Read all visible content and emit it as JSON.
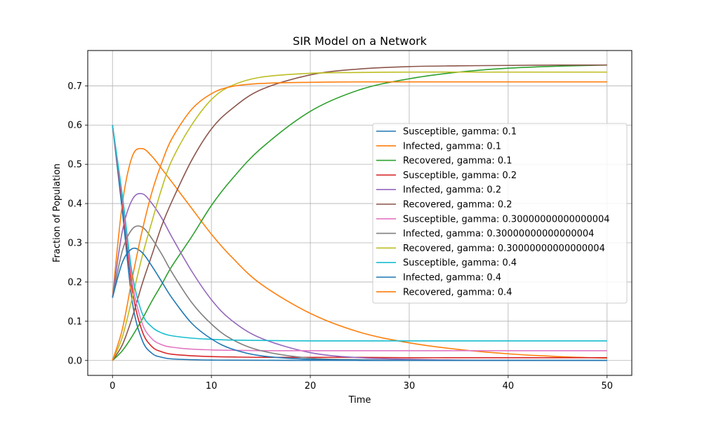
{
  "chart_data": {
    "type": "line",
    "title": "SIR Model on a Network",
    "xlabel": "Time",
    "ylabel": "Fraction of Population",
    "xlim": [
      -2.5,
      52.5
    ],
    "ylim": [
      -0.038,
      0.79
    ],
    "xticks": [
      0,
      10,
      20,
      30,
      40,
      50
    ],
    "yticks": [
      0.0,
      0.1,
      0.2,
      0.3,
      0.4,
      0.5,
      0.6,
      0.7
    ],
    "grid": true,
    "legend_position": "right",
    "x": [
      0,
      1,
      2,
      3,
      4,
      5,
      6,
      8,
      10,
      12,
      15,
      20,
      25,
      30,
      35,
      40,
      45,
      50
    ],
    "series": [
      {
        "name": "Susceptible, gamma: 0.1",
        "color": "#1f77b4",
        "values": [
          0.6,
          0.38,
          0.15,
          0.052,
          0.018,
          0.008,
          0.004,
          0.002,
          0.001,
          0.0008,
          0.0005,
          0.0003,
          0.0002,
          0.0001,
          0.0001,
          0.0001,
          0.0001,
          0.0001
        ]
      },
      {
        "name": "Infected, gamma: 0.1",
        "color": "#ff7f0e",
        "values": [
          0.16,
          0.4,
          0.52,
          0.54,
          0.52,
          0.488,
          0.455,
          0.388,
          0.322,
          0.265,
          0.195,
          0.12,
          0.072,
          0.045,
          0.028,
          0.017,
          0.01,
          0.006
        ]
      },
      {
        "name": "Recovered, gamma: 0.1",
        "color": "#2ca02c",
        "values": [
          0.0,
          0.025,
          0.062,
          0.105,
          0.152,
          0.195,
          0.24,
          0.315,
          0.395,
          0.46,
          0.54,
          0.635,
          0.69,
          0.718,
          0.735,
          0.745,
          0.75,
          0.753
        ]
      },
      {
        "name": "Susceptible, gamma: 0.2",
        "color": "#d62728",
        "values": [
          0.6,
          0.4,
          0.18,
          0.075,
          0.035,
          0.022,
          0.016,
          0.012,
          0.01,
          0.009,
          0.008,
          0.008,
          0.008,
          0.007,
          0.007,
          0.007,
          0.007,
          0.007
        ]
      },
      {
        "name": "Infected, gamma: 0.2",
        "color": "#9467bd",
        "values": [
          0.16,
          0.33,
          0.41,
          0.425,
          0.4,
          0.362,
          0.315,
          0.228,
          0.155,
          0.103,
          0.057,
          0.02,
          0.007,
          0.003,
          0.001,
          0.0005,
          0.0002,
          0.0001
        ]
      },
      {
        "name": "Recovered, gamma: 0.2",
        "color": "#8c564b",
        "values": [
          0.0,
          0.04,
          0.11,
          0.195,
          0.27,
          0.345,
          0.405,
          0.51,
          0.59,
          0.64,
          0.69,
          0.728,
          0.743,
          0.749,
          0.751,
          0.752,
          0.753,
          0.753
        ]
      },
      {
        "name": "Susceptible, gamma: 0.30000000000000004",
        "color": "#e377c2",
        "values": [
          0.6,
          0.41,
          0.2,
          0.095,
          0.055,
          0.04,
          0.034,
          0.029,
          0.027,
          0.026,
          0.025,
          0.025,
          0.025,
          0.025,
          0.025,
          0.025,
          0.025,
          0.025
        ]
      },
      {
        "name": "Infected, gamma: 0.30000000000000004",
        "color": "#7f7f7f",
        "values": [
          0.16,
          0.28,
          0.335,
          0.34,
          0.31,
          0.27,
          0.225,
          0.148,
          0.093,
          0.055,
          0.025,
          0.006,
          0.002,
          0.0005,
          0.0001,
          0.0001,
          0.0001,
          0.0001
        ]
      },
      {
        "name": "Recovered, gamma: 0.30000000000000004",
        "color": "#bcbd22",
        "values": [
          0.0,
          0.06,
          0.16,
          0.265,
          0.355,
          0.44,
          0.51,
          0.6,
          0.665,
          0.7,
          0.722,
          0.732,
          0.734,
          0.735,
          0.735,
          0.735,
          0.735,
          0.735
        ]
      },
      {
        "name": "Susceptible, gamma: 0.4",
        "color": "#17becf",
        "values": [
          0.6,
          0.42,
          0.22,
          0.12,
          0.085,
          0.07,
          0.063,
          0.057,
          0.054,
          0.052,
          0.051,
          0.05,
          0.05,
          0.05,
          0.05,
          0.05,
          0.05,
          0.05
        ]
      },
      {
        "name": "Infected, gamma: 0.4",
        "color": "#1f77b4",
        "values": [
          0.16,
          0.25,
          0.285,
          0.275,
          0.24,
          0.2,
          0.16,
          0.095,
          0.055,
          0.03,
          0.012,
          0.003,
          0.001,
          0.0003,
          0.0001,
          0.0001,
          0.0001,
          0.0001
        ]
      },
      {
        "name": "Recovered, gamma: 0.4",
        "color": "#ff7f0e",
        "values": [
          0.0,
          0.08,
          0.21,
          0.33,
          0.43,
          0.505,
          0.565,
          0.64,
          0.68,
          0.698,
          0.706,
          0.709,
          0.71,
          0.71,
          0.71,
          0.71,
          0.71,
          0.71
        ]
      }
    ]
  }
}
